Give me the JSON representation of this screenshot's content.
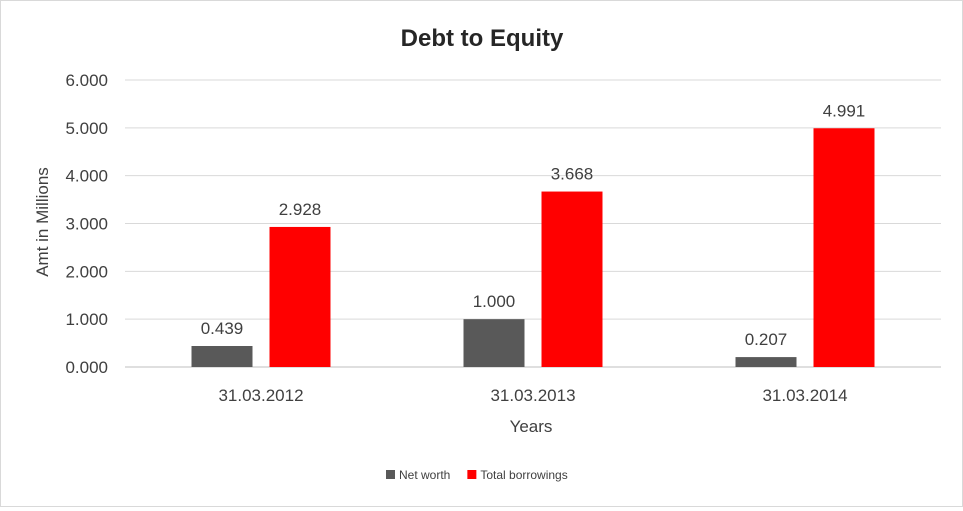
{
  "chart_data": {
    "type": "bar",
    "title": "Debt to Equity",
    "xlabel": "Years",
    "ylabel": "Amt in Millions",
    "categories": [
      "31.03.2012",
      "31.03.2013",
      "31.03.2014"
    ],
    "series": [
      {
        "name": "Net worth",
        "values": [
          0.439,
          1.0,
          0.207
        ],
        "labels": [
          "0.439",
          "1.000",
          "0.207"
        ],
        "color": "#595959"
      },
      {
        "name": "Total borrowings",
        "values": [
          2.928,
          3.668,
          4.991
        ],
        "labels": [
          "2.928",
          "3.668",
          "4.991"
        ],
        "color": "#ff0000"
      }
    ],
    "ylim": [
      0,
      6
    ],
    "yticks": [
      0,
      1,
      2,
      3,
      4,
      5,
      6
    ],
    "ytick_labels": [
      "0.000",
      "1.000",
      "2.000",
      "3.000",
      "4.000",
      "5.000",
      "6.000"
    ],
    "grid": true,
    "legend_position": "bottom"
  }
}
